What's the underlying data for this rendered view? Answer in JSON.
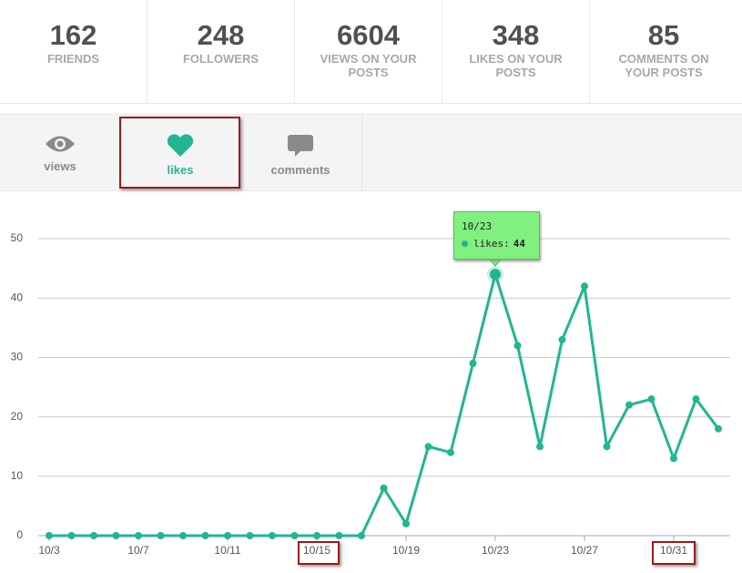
{
  "stats": [
    {
      "value": "162",
      "label": "FRIENDS"
    },
    {
      "value": "248",
      "label": "FOLLOWERS"
    },
    {
      "value": "6604",
      "label": "VIEWS ON YOUR POSTS"
    },
    {
      "value": "348",
      "label": "LIKES ON YOUR POSTS"
    },
    {
      "value": "85",
      "label": "COMMENTS ON YOUR POSTS"
    }
  ],
  "tabs": [
    {
      "label": "views"
    },
    {
      "label": "likes"
    },
    {
      "label": "comments"
    }
  ],
  "chart_data": {
    "type": "line",
    "categories": [
      "10/3",
      null,
      null,
      null,
      "10/7",
      null,
      null,
      null,
      "10/11",
      null,
      null,
      null,
      "10/15",
      null,
      null,
      null,
      "10/19",
      null,
      null,
      null,
      "10/23",
      null,
      null,
      null,
      "10/27",
      null,
      null,
      null,
      "10/31",
      null,
      null
    ],
    "series": [
      {
        "name": "likes",
        "color": "#22b592",
        "values": [
          0,
          0,
          0,
          0,
          0,
          0,
          0,
          0,
          0,
          0,
          0,
          0,
          0,
          0,
          0,
          8,
          2,
          15,
          14,
          29,
          44,
          32,
          15,
          33,
          42,
          15,
          22,
          23,
          13,
          23,
          18
        ]
      }
    ],
    "ylim": [
      0,
      50
    ],
    "yticks": [
      0,
      10,
      20,
      30,
      40,
      50
    ],
    "grid": true,
    "tooltip_index": 20
  }
}
